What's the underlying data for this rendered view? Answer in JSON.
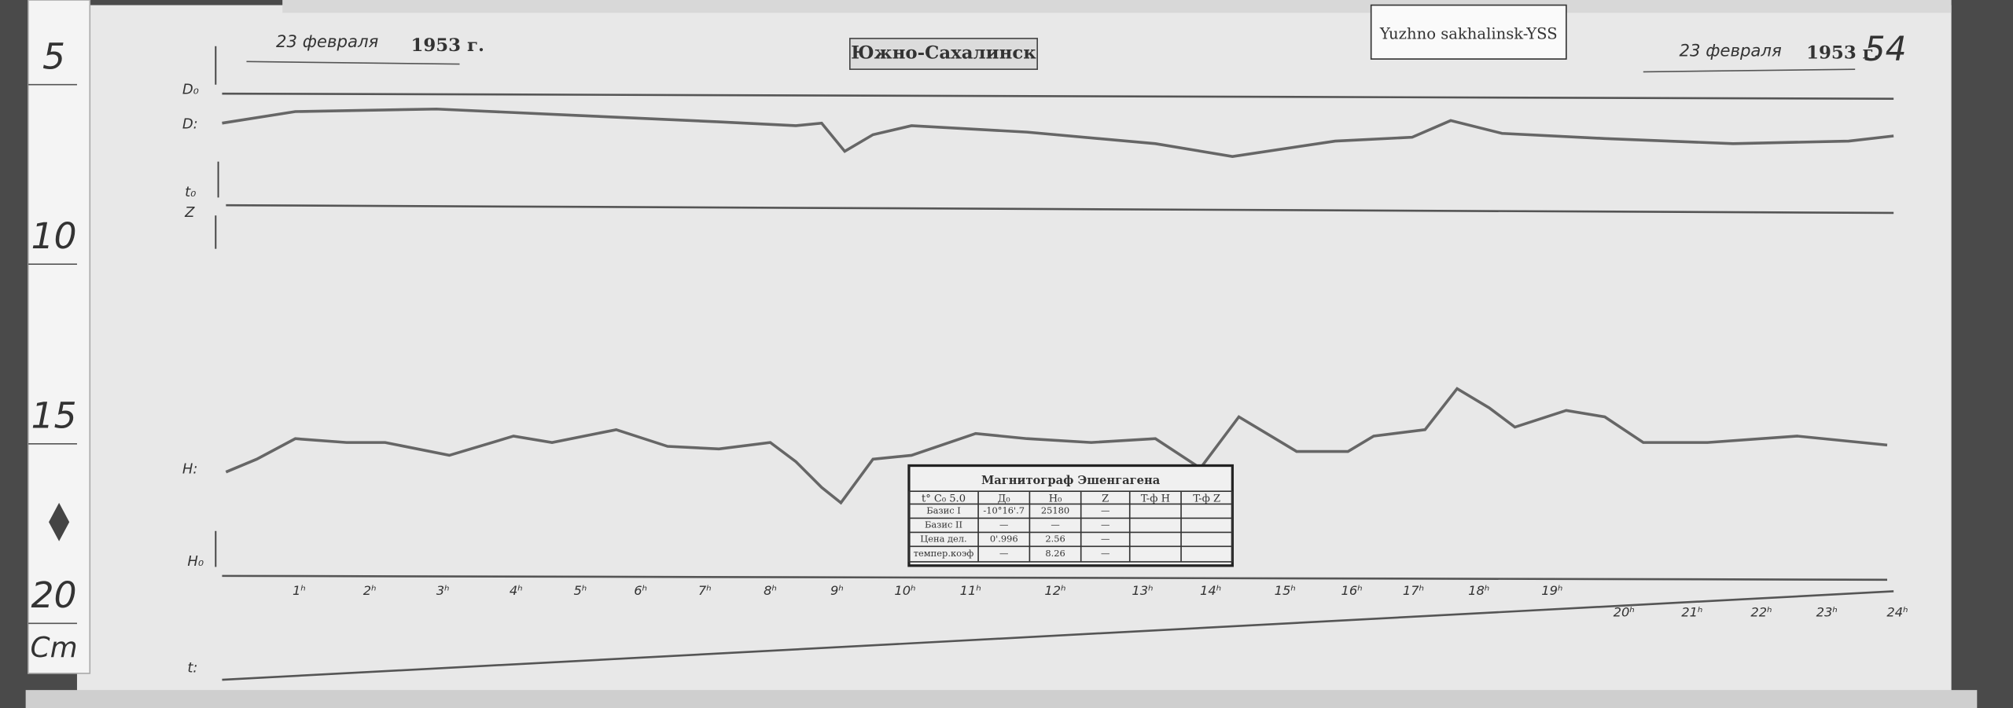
{
  "ruler": {
    "marks": [
      "5",
      "10",
      "15",
      "20"
    ],
    "unit": "Cm"
  },
  "header": {
    "date_left": "23 февраля",
    "year_left": "1953 г.",
    "station": "Южно-Сахалинск",
    "sticker": "Yuzhno sakhalinsk-YSS",
    "date_right": "23 февраля",
    "year_right": "1953 г.",
    "sheet": "54"
  },
  "traces": {
    "d0": "D₀",
    "d": "D:",
    "t0": "t₀",
    "z": "Z",
    "h": "H:",
    "h0": "H₀",
    "t": "t:"
  },
  "hours": [
    "1ʰ",
    "2ʰ",
    "3ʰ",
    "4ʰ",
    "5ʰ",
    "6ʰ",
    "7ʰ",
    "8ʰ",
    "9ʰ",
    "10ʰ",
    "11ʰ",
    "12ʰ",
    "13ʰ",
    "14ʰ",
    "15ʰ",
    "16ʰ",
    "17ʰ",
    "18ʰ",
    "19ʰ",
    "20ʰ",
    "21ʰ",
    "22ʰ",
    "23ʰ",
    "24ʰ"
  ],
  "table": {
    "title": "Магнитограф Эшенгагена",
    "header": [
      "t° C₀ 5.0",
      "Д₀",
      "H₀",
      "Z",
      "T-ф H",
      "T-ф Z"
    ],
    "rows": [
      [
        "Базис I",
        "-10°16'.7",
        "25180",
        "—",
        "",
        ""
      ],
      [
        "Базис II",
        "—",
        "—",
        "—",
        "",
        ""
      ],
      [
        "Цена дел.",
        "0'.996",
        "2.56",
        "—",
        "",
        ""
      ],
      [
        "темпер.коэф",
        "—",
        "8.26",
        "—",
        "",
        ""
      ]
    ]
  }
}
